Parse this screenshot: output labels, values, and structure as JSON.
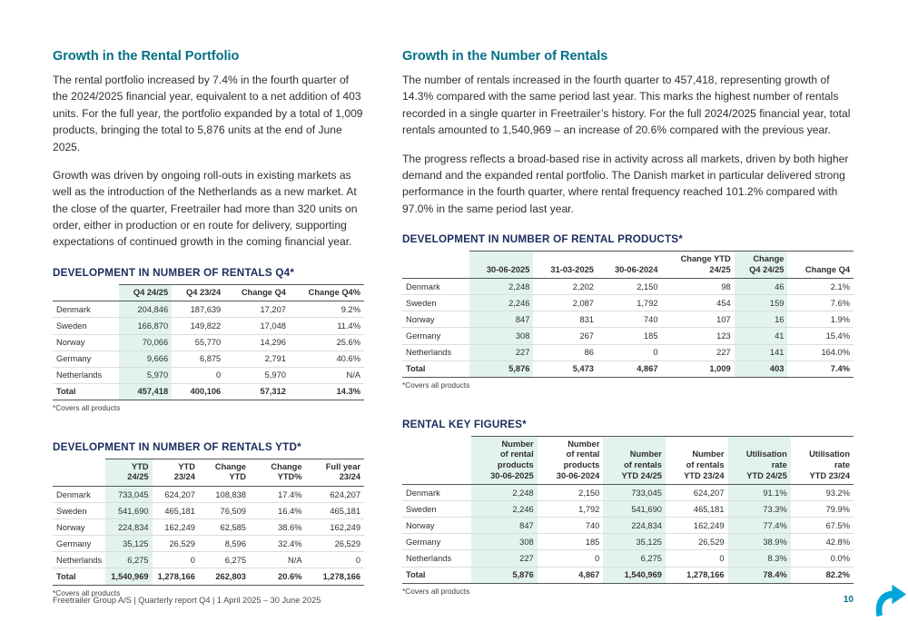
{
  "colors": {
    "teal": "#006f85",
    "navy": "#1b2d5e",
    "mint": "#e2f3ee",
    "arrow": "#00a6d8"
  },
  "left": {
    "section": {
      "title": "Growth in the Rental Portfolio",
      "p1": "The rental portfolio increased by 7.4% in the fourth quarter of the 2024/2025 financial year, equivalent to a net addition of 403 units. For the full year, the portfolio expanded by a total of 1,009 products, bringing the total to 5,876 units at the end of June 2025.",
      "p2": "Growth was driven by ongoing roll-outs in existing markets as well as the introduction of the Netherlands as a new market. At the close of the quarter, Freetrailer had more than 320 units on order, either in production or en route for delivery, supporting expectations of continued growth in the coming financial year."
    },
    "table_q4": {
      "title": "DEVELOPMENT IN NUMBER OF RENTALS Q4*",
      "columns": [
        "",
        "Q4 24/25",
        "Q4 23/24",
        "Change Q4",
        "Change Q4%"
      ],
      "highlight": [
        1
      ],
      "rows": [
        [
          "Denmark",
          "204,846",
          "187,639",
          "17,207",
          "9.2%"
        ],
        [
          "Sweden",
          "166,870",
          "149,822",
          "17,048",
          "11.4%"
        ],
        [
          "Norway",
          "70,066",
          "55,770",
          "14,296",
          "25.6%"
        ],
        [
          "Germany",
          "9,666",
          "6,875",
          "2,791",
          "40.6%"
        ],
        [
          "Netherlands",
          "5,970",
          "0",
          "5,970",
          "N/A"
        ]
      ],
      "total": [
        "Total",
        "457,418",
        "400,106",
        "57,312",
        "14.3%"
      ],
      "footnote": "*Covers all products"
    },
    "table_ytd": {
      "title": "DEVELOPMENT IN NUMBER OF RENTALS YTD*",
      "columns": [
        "",
        "YTD 24/25",
        "YTD 23/24",
        "Change YTD",
        "Change YTD%",
        "Full year 23/24"
      ],
      "highlight": [
        1
      ],
      "rows": [
        [
          "Denmark",
          "733,045",
          "624,207",
          "108,838",
          "17.4%",
          "624,207"
        ],
        [
          "Sweden",
          "541,690",
          "465,181",
          "76,509",
          "16.4%",
          "465,181"
        ],
        [
          "Norway",
          "224,834",
          "162,249",
          "62,585",
          "38.6%",
          "162,249"
        ],
        [
          "Germany",
          "35,125",
          "26,529",
          "8,596",
          "32.4%",
          "26,529"
        ],
        [
          "Netherlands",
          "6,275",
          "0",
          "6,275",
          "N/A",
          "0"
        ]
      ],
      "total": [
        "Total",
        "1,540,969",
        "1,278,166",
        "262,803",
        "20.6%",
        "1,278,166"
      ],
      "footnote": "*Covers all products"
    }
  },
  "right": {
    "section": {
      "title": "Growth in the Number of Rentals",
      "p1": "The number of rentals increased in the fourth quarter to 457,418, representing growth of 14.3% compared with the same period last year. This marks the highest number of rentals recorded in a single quarter in Freetrailer’s history. For the full 2024/2025 financial year, total rentals amounted to 1,540,969 – an increase of 20.6% compared with the previous year.",
      "p2": "The progress reflects a broad-based rise in activity across all markets, driven by both higher demand and the expanded rental portfolio. The Danish market in particular delivered strong performance in the fourth quarter, where rental frequency reached 101.2% compared with 97.0% in the same period last year."
    },
    "table_products": {
      "title": "DEVELOPMENT IN NUMBER OF RENTAL PRODUCTS*",
      "columns": [
        "",
        "30-06-2025",
        "31-03-2025",
        "30-06-2024",
        "Change YTD\n24/25",
        "Change\nQ4 24/25",
        "Change Q4"
      ],
      "highlight": [
        1,
        5
      ],
      "rows": [
        [
          "Denmark",
          "2,248",
          "2,202",
          "2,150",
          "98",
          "46",
          "2.1%"
        ],
        [
          "Sweden",
          "2,246",
          "2,087",
          "1,792",
          "454",
          "159",
          "7.6%"
        ],
        [
          "Norway",
          "847",
          "831",
          "740",
          "107",
          "16",
          "1.9%"
        ],
        [
          "Germany",
          "308",
          "267",
          "185",
          "123",
          "41",
          "15.4%"
        ],
        [
          "Netherlands",
          "227",
          "86",
          "0",
          "227",
          "141",
          "164.0%"
        ]
      ],
      "total": [
        "Total",
        "5,876",
        "5,473",
        "4,867",
        "1,009",
        "403",
        "7.4%"
      ],
      "footnote": "*Covers all products"
    },
    "table_key_figures": {
      "title": "RENTAL KEY FIGURES*",
      "columns": [
        "",
        "Number\nof rental\nproducts\n30-06-2025",
        "Number\nof rental\nproducts\n30-06-2024",
        "Number\nof rentals\nYTD 24/25",
        "Number\nof rentals\nYTD 23/24",
        "Utilisation\nrate\nYTD 24/25",
        "Utilisation\nrate\nYTD 23/24"
      ],
      "highlight": [
        1,
        3,
        5
      ],
      "rows": [
        [
          "Denmark",
          "2,248",
          "2,150",
          "733,045",
          "624,207",
          "91.1%",
          "93.2%"
        ],
        [
          "Sweden",
          "2,246",
          "1,792",
          "541,690",
          "465,181",
          "73.3%",
          "79.9%"
        ],
        [
          "Norway",
          "847",
          "740",
          "224,834",
          "162,249",
          "77.4%",
          "67.5%"
        ],
        [
          "Germany",
          "308",
          "185",
          "35,125",
          "26,529",
          "38.9%",
          "42.8%"
        ],
        [
          "Netherlands",
          "227",
          "0",
          "6,275",
          "0",
          "8.3%",
          "0.0%"
        ]
      ],
      "total": [
        "Total",
        "5,876",
        "4,867",
        "1,540,969",
        "1,278,166",
        "78.4%",
        "82.2%"
      ],
      "footnote": "*Covers all products"
    }
  },
  "footer": {
    "left_text": "Freetrailer Group A/S  |  Quarterly report Q4  |  1 April 2025 – 30 June 2025",
    "page_number": "10"
  }
}
